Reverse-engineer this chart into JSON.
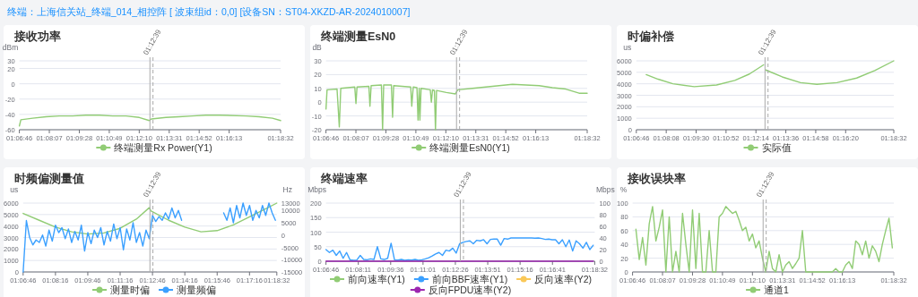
{
  "chart_data": [
    {
      "type": "line",
      "title": "接收功率",
      "ylabel": "dBm",
      "annotations": [
        "终端：上海信关站_终端_014_相控阵 [ 波束组id：0,0] [设备SN：ST04-XKZD-AR-2024010007]"
      ],
      "xlim": [
        1.11278,
        1.3089
      ],
      "xticks": [
        {
          "value": 1.11278,
          "label": "01:06:46"
        },
        {
          "value": 1.13528,
          "label": "01:08:07"
        },
        {
          "value": 1.15778,
          "label": "01:09:28"
        },
        {
          "value": 1.18028,
          "label": "01:10:49"
        },
        {
          "value": 1.20278,
          "label": "01:12:10"
        },
        {
          "value": 1.22528,
          "label": "01:13:31"
        },
        {
          "value": 1.24778,
          "label": "01:14:52"
        },
        {
          "value": 1.27028,
          "label": "01:16:13"
        },
        {
          "value": 1.3089,
          "label": "01:18:32"
        }
      ],
      "ylim": [
        -60,
        30
      ],
      "yticks": [
        -60,
        -40,
        -20,
        0,
        20,
        30
      ],
      "grid": "y",
      "legend": "bottom",
      "ref_lines": [
        {
          "axis": "x",
          "value": 1.2108,
          "label": "01:12:39",
          "color": "#aaaaaa"
        },
        {
          "axis": "x",
          "value": 1.2131,
          "color": "#aaaaaa",
          "line_style": "dashed"
        }
      ],
      "series": [
        {
          "name": "终端测量Rx Power(Y1)",
          "color": "#91cc75",
          "x": [
            1.1128,
            1.1139,
            1.1228,
            1.1328,
            1.1428,
            1.1528,
            1.1628,
            1.1728,
            1.1828,
            1.1928,
            1.2028,
            1.2103,
            1.2119,
            1.2228,
            1.2328,
            1.2428,
            1.2528,
            1.2628,
            1.2828,
            1.2928,
            1.3028,
            1.3089
          ],
          "values": [
            -55,
            -47,
            -45,
            -43,
            -42,
            -42,
            -41,
            -41,
            -42,
            -42,
            -44,
            -48,
            -46,
            -44,
            -43,
            -42,
            -41,
            -41,
            -42,
            -43,
            -45,
            -48
          ]
        }
      ]
    },
    {
      "type": "line",
      "title": "终端测量EsN0",
      "ylabel": "dB",
      "xlim": [
        1.11278,
        1.3089
      ],
      "xticks": [
        {
          "value": 1.11278,
          "label": "01:06:46"
        },
        {
          "value": 1.13528,
          "label": "01:08:07"
        },
        {
          "value": 1.15778,
          "label": "01:09:28"
        },
        {
          "value": 1.18028,
          "label": "01:10:49"
        },
        {
          "value": 1.20278,
          "label": "01:12:10"
        },
        {
          "value": 1.22528,
          "label": "01:13:31"
        },
        {
          "value": 1.24778,
          "label": "01:14:52"
        },
        {
          "value": 1.27028,
          "label": "01:16:13"
        },
        {
          "value": 1.3089,
          "label": "01:18:32"
        }
      ],
      "ylim": [
        -20,
        30
      ],
      "yticks": [
        -20,
        -10,
        0,
        10,
        20,
        30
      ],
      "grid": "y",
      "legend": "bottom",
      "ref_lines": [
        {
          "axis": "x",
          "value": 1.2108,
          "label": "01:12:39",
          "color": "#aaaaaa"
        },
        {
          "axis": "x",
          "value": 1.2131,
          "color": "#aaaaaa",
          "line_style": "dashed"
        }
      ],
      "series": [
        {
          "name": "终端测量EsN0(Y1)",
          "color": "#91cc75",
          "x": [
            1.1128,
            1.1136,
            1.1211,
            1.1228,
            1.1239,
            1.1344,
            1.1353,
            1.1361,
            1.145,
            1.1458,
            1.1467,
            1.1544,
            1.1553,
            1.1561,
            1.1619,
            1.1628,
            1.1636,
            1.1764,
            1.1772,
            1.1783,
            1.1811,
            1.1819,
            1.1828,
            1.1833,
            1.1842,
            1.1911,
            1.1919,
            1.1928,
            1.1942,
            1.195,
            1.1958,
            1.2031,
            1.21,
            1.2117,
            1.2228,
            1.2328,
            1.2428,
            1.2528,
            1.2728,
            1.2828,
            1.2928,
            1.3028,
            1.3089
          ],
          "values": [
            -5,
            9,
            9.5,
            -18,
            10,
            11,
            -1,
            11,
            11.5,
            -3,
            12,
            12.5,
            -20,
            12.5,
            12.5,
            -11,
            12,
            11,
            -3,
            11,
            10.5,
            -13,
            10,
            -13,
            10,
            9,
            0,
            9,
            8.5,
            -20,
            8.5,
            7,
            6,
            9,
            10,
            11,
            12,
            13,
            12,
            10.5,
            9.5,
            6.5,
            6.5
          ]
        }
      ]
    },
    {
      "type": "line",
      "title": "时偏补偿",
      "ylabel": "us",
      "xlim": [
        1.11278,
        1.3089
      ],
      "xticks": [
        {
          "value": 1.11278,
          "label": "01:06:46"
        },
        {
          "value": 1.13556,
          "label": "01:08:08"
        },
        {
          "value": 1.15833,
          "label": "01:09:30"
        },
        {
          "value": 1.18111,
          "label": "01:10:52"
        },
        {
          "value": 1.20389,
          "label": "01:12:14"
        },
        {
          "value": 1.22667,
          "label": "01:13:36"
        },
        {
          "value": 1.24944,
          "label": "01:14:58"
        },
        {
          "value": 1.27222,
          "label": "01:16:20"
        },
        {
          "value": 1.3089,
          "label": "01:18:32"
        }
      ],
      "ylim": [
        0,
        6000
      ],
      "yticks": [
        0,
        1000,
        2000,
        3000,
        4000,
        5000,
        6000
      ],
      "grid": "y",
      "legend": "bottom",
      "ref_lines": [
        {
          "axis": "x",
          "value": 1.2108,
          "label": "01:12:39",
          "color": "#aaaaaa"
        },
        {
          "axis": "x",
          "value": 1.2131,
          "color": "#aaaaaa",
          "line_style": "dashed"
        }
      ],
      "series": [
        {
          "name": "实际值",
          "color": "#91cc75",
          "x": [
            1.1203,
            1.1294,
            1.1406,
            1.1569,
            1.1739,
            1.1878,
            1.1989,
            1.2097,
            1.2106,
            1.2114,
            1.2239,
            1.2378,
            1.2503,
            1.2656,
            1.2806,
            1.2944,
            1.3089
          ],
          "values": [
            4800,
            4400,
            4000,
            3750,
            3900,
            4300,
            4850,
            5650,
            null,
            5200,
            4600,
            4100,
            3950,
            4100,
            4500,
            5150,
            6000
          ]
        }
      ]
    },
    {
      "type": "line",
      "title": "时频偏测量值",
      "ylabel": "us",
      "y2label": "Hz",
      "xlim": [
        1.11278,
        1.3089
      ],
      "xticks": [
        {
          "value": 1.11278,
          "label": "01:06:46"
        },
        {
          "value": 1.13778,
          "label": "01:08:16"
        },
        {
          "value": 1.16278,
          "label": "01:09:46"
        },
        {
          "value": 1.18778,
          "label": "01:11:16"
        },
        {
          "value": 1.21278,
          "label": "01:12:46"
        },
        {
          "value": 1.23778,
          "label": "01:14:16"
        },
        {
          "value": 1.26278,
          "label": "01:15:46"
        },
        {
          "value": 1.28778,
          "label": "01:17:16"
        },
        {
          "value": 1.3089,
          "label": "01:18:32"
        }
      ],
      "ylim": [
        0,
        6000
      ],
      "yticks": [
        0,
        1000,
        2000,
        3000,
        4000,
        5000,
        6000
      ],
      "y2lim": [
        -15000,
        13000
      ],
      "y2ticks": [
        -15000,
        -10000,
        -5000,
        0,
        5000,
        10000,
        13000
      ],
      "grid": "y",
      "legend": "bottom",
      "ref_lines": [
        {
          "axis": "x",
          "value": 1.2108,
          "label": "01:12:39",
          "color": "#aaaaaa"
        },
        {
          "axis": "x",
          "value": 1.2131,
          "color": "#aaaaaa",
          "line_style": "dashed"
        }
      ],
      "series": [
        {
          "name": "测量时偏",
          "color": "#91cc75",
          "x": [
            1.1128,
            1.1253,
            1.1378,
            1.1503,
            1.1628,
            1.1753,
            1.1878,
            1.2003,
            1.2103,
            1.2117,
            1.2253,
            1.2378,
            1.2503,
            1.2628,
            1.2753,
            1.2878,
            1.3003,
            1.3089
          ],
          "values": [
            5100,
            4500,
            3900,
            3500,
            3300,
            3400,
            3800,
            4600,
            5600,
            5300,
            4500,
            3900,
            3500,
            3600,
            4100,
            4800,
            5500,
            6000
          ]
        },
        {
          "name": "测量频偏",
          "color": "#3ba0ff",
          "axis": "y2",
          "x": [
            1.1128,
            1.1153,
            1.1178,
            1.1203,
            1.1228,
            1.1253,
            1.1278,
            1.1303,
            1.1328,
            1.1353,
            1.1378,
            1.1403,
            1.1428,
            1.1453,
            1.1478,
            1.1503,
            1.1528,
            1.1553,
            1.1578,
            1.1603,
            1.1628,
            1.1653,
            1.1678,
            1.1703,
            1.1728,
            1.1753,
            1.1778,
            1.1803,
            1.1828,
            1.1853,
            1.1878,
            1.1903,
            1.1928,
            1.1953,
            1.1978,
            1.2003,
            1.2028,
            1.2053,
            1.2078,
            1.2103,
            1.2128,
            1.2153,
            1.2178,
            1.2203,
            1.2228,
            1.2253,
            1.2278,
            1.2303,
            1.2328,
            1.2353,
            1.2503,
            1.2678,
            1.2703,
            1.2728,
            1.2753,
            1.2778,
            1.2803,
            1.2828,
            1.2853,
            1.2878,
            1.2903,
            1.2928,
            1.2953,
            1.2978,
            1.3003,
            1.3028,
            1.3053,
            1.3078
          ],
          "values": [
            -15000,
            5900,
            -1000,
            -4000,
            -2000,
            -3000,
            0,
            -4500,
            2000,
            -2500,
            4000,
            1000,
            3000,
            -1500,
            2500,
            -3000,
            1500,
            -2000,
            4000,
            -6500,
            1000,
            -3500,
            2000,
            -1000,
            3000,
            -4000,
            1500,
            -2500,
            4500,
            -1500,
            3000,
            -6000,
            2500,
            -2000,
            5000,
            -3000,
            1000,
            -4500,
            2000,
            -1500,
            8000,
            5500,
            7500,
            6000,
            9000,
            6500,
            11000,
            7000,
            10000,
            6000,
            null,
            9000,
            6000,
            11000,
            5000,
            12000,
            7000,
            13000,
            8000,
            12000,
            6000,
            10000,
            7000,
            12000,
            8000,
            13000,
            9000,
            6000
          ]
        }
      ]
    },
    {
      "type": "line",
      "title": "终端速率",
      "ylabel": "Mbps",
      "y2label": "Mbps",
      "xlim": [
        1.11278,
        1.3089
      ],
      "xticks": [
        {
          "value": 1.11278,
          "label": "01:06:46"
        },
        {
          "value": 1.13639,
          "label": "01:08:11"
        },
        {
          "value": 1.16,
          "label": "01:09:36"
        },
        {
          "value": 1.18361,
          "label": "01:11:01"
        },
        {
          "value": 1.20722,
          "label": "01:12:26"
        },
        {
          "value": 1.23083,
          "label": "01:13:51"
        },
        {
          "value": 1.25444,
          "label": "01:15:16"
        },
        {
          "value": 1.27806,
          "label": "01:16:41"
        },
        {
          "value": 1.3089,
          "label": "01:18:32"
        }
      ],
      "ylim": [
        0,
        200
      ],
      "yticks": [
        0,
        50,
        100,
        150,
        200
      ],
      "y2lim": [
        0,
        100
      ],
      "y2ticks": [
        0,
        20,
        40,
        60,
        80,
        100
      ],
      "grid": "y",
      "legend": "bottom",
      "ref_lines": [
        {
          "axis": "x",
          "value": 1.2108,
          "label": "01:12:39",
          "color": "#aaaaaa"
        },
        {
          "axis": "x",
          "value": 1.2131,
          "color": "#aaaaaa",
          "line_style": "dashed"
        }
      ],
      "series": [
        {
          "name": "前向速率(Y1)",
          "color": "#91cc75"
        },
        {
          "name": "前向BBF速率(Y1)",
          "color": "#3ba0ff",
          "x": [
            1.1128,
            1.1153,
            1.1178,
            1.1203,
            1.1228,
            1.1253,
            1.1278,
            1.1303,
            1.1328,
            1.1353,
            1.1378,
            1.1403,
            1.1428,
            1.1453,
            1.1478,
            1.1503,
            1.1528,
            1.1553,
            1.1578,
            1.1603,
            1.1628,
            1.1653,
            1.1678,
            1.1703,
            1.1728,
            1.1753,
            1.1778,
            1.1803,
            1.1828,
            1.1853,
            1.1878,
            1.1903,
            1.1928,
            1.1953,
            1.1978,
            1.2003,
            1.2028,
            1.2053,
            1.2078,
            1.2103,
            1.2128,
            1.2153,
            1.2178,
            1.2203,
            1.2228,
            1.2253,
            1.2278,
            1.2303,
            1.2328,
            1.2353,
            1.2378,
            1.2403,
            1.2428,
            1.2453,
            1.2478,
            1.2503,
            1.2528,
            1.2553,
            1.2578,
            1.2603,
            1.2628,
            1.2653,
            1.2678,
            1.2703,
            1.2728,
            1.2753,
            1.2778,
            1.2803,
            1.2828,
            1.2853,
            1.2878,
            1.2903,
            1.2928,
            1.2953,
            1.2978,
            1.3003,
            1.3028,
            1.3053,
            1.3078
          ],
          "values": [
            40,
            30,
            38,
            20,
            35,
            10,
            30,
            5,
            3,
            4,
            20,
            6,
            5,
            8,
            6,
            50,
            8,
            6,
            10,
            62,
            5,
            4,
            6,
            3,
            5,
            4,
            6,
            3,
            5,
            8,
            12,
            18,
            25,
            30,
            20,
            38,
            35,
            45,
            28,
            60,
            65,
            68,
            70,
            60,
            72,
            70,
            74,
            60,
            75,
            76,
            76,
            55,
            78,
            76,
            80,
            80,
            80,
            80,
            80,
            80,
            80,
            79,
            80,
            78,
            75,
            76,
            74,
            74,
            60,
            74,
            50,
            73,
            35,
            70,
            60,
            45,
            65,
            40,
            55
          ]
        },
        {
          "name": "反向速率(Y2)",
          "color": "#fac858",
          "axis": "y2"
        },
        {
          "name": "反向FPDU速率(Y2)",
          "color": "#9c27b0",
          "axis": "y2",
          "x": [
            1.1128,
            1.3078
          ],
          "values": [
            0,
            0
          ]
        }
      ]
    },
    {
      "type": "line",
      "title": "接收误块率",
      "ylabel": "%",
      "xlim": [
        1.11278,
        1.3089
      ],
      "xticks": [
        {
          "value": 1.11278,
          "label": "01:06:46"
        },
        {
          "value": 1.13528,
          "label": "01:08:07"
        },
        {
          "value": 1.15778,
          "label": "01:09:28"
        },
        {
          "value": 1.18028,
          "label": "01:10:49"
        },
        {
          "value": 1.20278,
          "label": "01:12:10"
        },
        {
          "value": 1.22528,
          "label": "01:13:31"
        },
        {
          "value": 1.24778,
          "label": "01:14:52"
        },
        {
          "value": 1.27028,
          "label": "01:16:13"
        },
        {
          "value": 1.3089,
          "label": "01:18:32"
        }
      ],
      "ylim": [
        0,
        100
      ],
      "yticks": [
        0,
        20,
        40,
        60,
        80,
        100
      ],
      "grid": "y",
      "legend": "bottom",
      "ref_lines": [
        {
          "axis": "x",
          "value": 1.2108,
          "label": "01:12:39",
          "color": "#aaaaaa"
        },
        {
          "axis": "x",
          "value": 1.2131,
          "color": "#aaaaaa",
          "line_style": "dashed"
        }
      ],
      "series": [
        {
          "name": "通道1",
          "color": "#91cc75",
          "x": [
            1.1153,
            1.1178,
            1.1203,
            1.1228,
            1.1253,
            1.1278,
            1.1303,
            1.1328,
            1.1353,
            1.1378,
            1.1403,
            1.1428,
            1.1453,
            1.1478,
            1.1503,
            1.1528,
            1.1553,
            1.1578,
            1.1603,
            1.1628,
            1.1653,
            1.1678,
            1.1703,
            1.1728,
            1.1753,
            1.1778,
            1.1803,
            1.1828,
            1.1853,
            1.1878,
            1.1903,
            1.1928,
            1.1953,
            1.1978,
            1.2003,
            1.2028,
            1.2053,
            1.2078,
            1.2103,
            1.2128,
            1.2153,
            1.2178,
            1.2203,
            1.2228,
            1.2253,
            1.2278,
            1.2303,
            1.2328,
            1.2353,
            1.2378,
            1.2403,
            1.2428,
            1.2453,
            1.2478,
            1.2503,
            1.2528,
            1.2553,
            1.2578,
            1.2603,
            1.2628,
            1.2653,
            1.2678,
            1.2703,
            1.2728,
            1.2753,
            1.2778,
            1.2803,
            1.2828,
            1.2853,
            1.2878,
            1.2903,
            1.2928,
            1.2953,
            1.2978,
            1.3003,
            1.3028,
            1.3053,
            1.3078
          ],
          "values": [
            62,
            18,
            50,
            10,
            70,
            95,
            45,
            65,
            90,
            0,
            80,
            0,
            30,
            0,
            85,
            40,
            0,
            90,
            5,
            85,
            0,
            0,
            60,
            0,
            0,
            80,
            85,
            95,
            90,
            85,
            88,
            75,
            60,
            65,
            45,
            55,
            35,
            45,
            20,
            0,
            30,
            5,
            0,
            25,
            0,
            10,
            15,
            5,
            12,
            20,
            60,
            0,
            0,
            0,
            0,
            0,
            0,
            0,
            0,
            0,
            5,
            0,
            0,
            10,
            15,
            5,
            45,
            40,
            25,
            45,
            20,
            38,
            30,
            15,
            40,
            60,
            78,
            35
          ]
        }
      ]
    }
  ]
}
